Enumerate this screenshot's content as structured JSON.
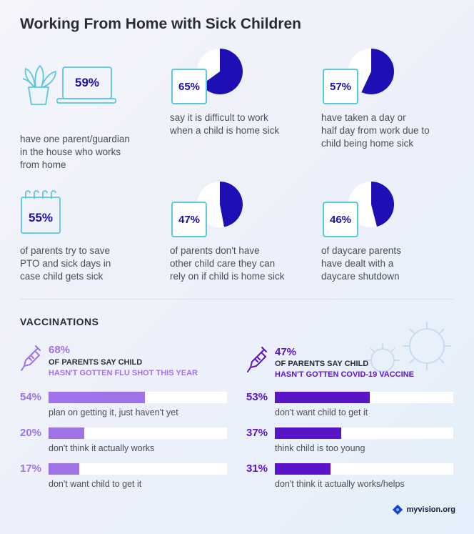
{
  "title": "Working From Home with Sick Children",
  "stats": [
    {
      "pct": "59%",
      "value": 59,
      "caption": "have one parent/guardian\nin the house who works\nfrom home",
      "icon": "laptop-plant-icon"
    },
    {
      "pct": "65%",
      "value": 65,
      "caption": "say it is difficult to work\nwhen a child is home sick",
      "icon": "pie"
    },
    {
      "pct": "57%",
      "value": 57,
      "caption": "have taken a day or\nhalf day from work due to\nchild being home sick",
      "icon": "pie"
    },
    {
      "pct": "55%",
      "value": 55,
      "caption": "of parents try to save\nPTO and sick days in\ncase child gets sick",
      "icon": "calendar-icon"
    },
    {
      "pct": "47%",
      "value": 47,
      "caption": "of parents don't have\nother child care they can\nrely on if child is home sick",
      "icon": "pie"
    },
    {
      "pct": "46%",
      "value": 46,
      "caption": "of daycare parents\nhave dealt with a\ndaycare shutdown",
      "icon": "pie"
    }
  ],
  "vaccinations": {
    "title": "VACCINATIONS",
    "flu": {
      "pct": "68%",
      "line1": "OF PARENTS SAY CHILD",
      "line2": "HASN'T GOTTEN FLU SHOT THIS YEAR",
      "color": "#9f72e8",
      "rows": [
        {
          "pct": "54%",
          "value": 54,
          "label": "plan on getting it, just haven't yet"
        },
        {
          "pct": "20%",
          "value": 20,
          "label": "don't think it actually works"
        },
        {
          "pct": "17%",
          "value": 17,
          "label": "don't want child to get it"
        }
      ]
    },
    "covid": {
      "pct": "47%",
      "line1": "OF PARENTS SAY CHILD",
      "line2": "HASN'T GOTTEN COVID-19 VACCINE",
      "color": "#5a14c8",
      "rows": [
        {
          "pct": "53%",
          "value": 53,
          "label": "don't want child to get it"
        },
        {
          "pct": "37%",
          "value": 37,
          "label": "think child is too young"
        },
        {
          "pct": "31%",
          "value": 31,
          "label": "don't think it actually works/helps"
        }
      ]
    }
  },
  "brand": "myvision.org",
  "colors": {
    "pie": "#1e0fb4",
    "box_border": "#5ac8db",
    "pct_text": "#1a0fa8"
  },
  "chart_data": [
    {
      "type": "pie",
      "values": [
        65,
        35
      ]
    },
    {
      "type": "pie",
      "values": [
        57,
        43
      ]
    },
    {
      "type": "pie",
      "values": [
        47,
        53
      ]
    },
    {
      "type": "pie",
      "values": [
        46,
        54
      ]
    },
    {
      "type": "bar",
      "categories": [
        "plan on getting it, just haven't yet",
        "don't think it actually works",
        "don't want child to get it"
      ],
      "values": [
        54,
        20,
        17
      ],
      "title": "HASN'T GOTTEN FLU SHOT THIS YEAR"
    },
    {
      "type": "bar",
      "categories": [
        "don't want child to get it",
        "think child is too young",
        "don't think it actually works/helps"
      ],
      "values": [
        53,
        37,
        31
      ],
      "title": "HASN'T GOTTEN COVID-19 VACCINE"
    }
  ]
}
